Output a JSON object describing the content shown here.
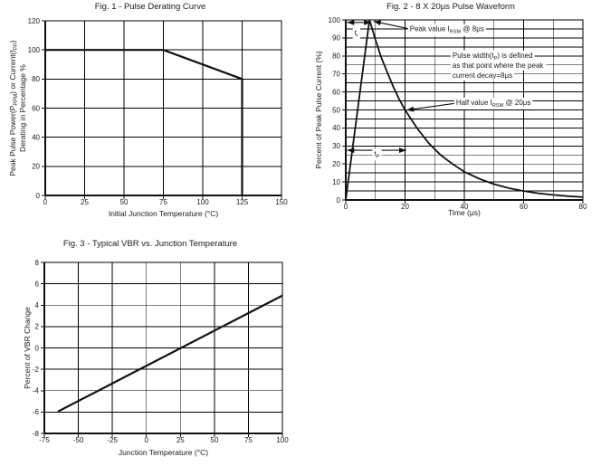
{
  "page": {
    "background": "#ffffff",
    "colors": {
      "line": "#111111",
      "grid": "#000000",
      "text": "#1a1a1a"
    }
  },
  "chart_data": [
    {
      "id": "fig1",
      "type": "line",
      "title": "Fig. 1 - Pulse Derating Curve",
      "xlabel": "Initial Junction Temperature (°C)",
      "ylabel_lines": [
        "Peak Pulse Power(P_{PPM}) or Current(I_{PP})",
        "Derating in Percentage %"
      ],
      "xlim": [
        0,
        150
      ],
      "ylim": [
        0,
        120
      ],
      "xticks": [
        0,
        25,
        50,
        75,
        100,
        125,
        150
      ],
      "yticks": [
        0,
        20,
        40,
        60,
        80,
        100,
        120
      ],
      "xgrid_step": 25,
      "ygrid_step": 20,
      "grid": true,
      "legend": null,
      "series": [
        {
          "name": "derating-line",
          "width": 2.2,
          "points": [
            [
              0,
              100
            ],
            [
              75,
              100
            ],
            [
              125,
              80
            ],
            [
              125,
              0
            ]
          ]
        }
      ],
      "annotations": []
    },
    {
      "id": "fig2",
      "type": "line",
      "title": "Fig. 2 - 8 X 20μs Pulse Waveform",
      "xlabel": "Time (μs)",
      "ylabel_lines": [
        "Percent of Peak Pulse Current (%)"
      ],
      "xlim": [
        0,
        80
      ],
      "ylim": [
        0,
        100
      ],
      "xticks": [
        0,
        20,
        40,
        60,
        80
      ],
      "yticks": [
        0,
        10,
        20,
        30,
        40,
        50,
        60,
        70,
        80,
        90,
        100
      ],
      "xgrid_step": 10,
      "ygrid_step": 5,
      "grid": true,
      "legend": null,
      "series": [
        {
          "name": "pulse-waveform",
          "width": 1.8,
          "points": [
            [
              0,
              0
            ],
            [
              8,
              100
            ],
            [
              10,
              89
            ],
            [
              12,
              79
            ],
            [
              14,
              71
            ],
            [
              16,
              63
            ],
            [
              18,
              56
            ],
            [
              20,
              50
            ],
            [
              24,
              40
            ],
            [
              28,
              31.5
            ],
            [
              32,
              25
            ],
            [
              36,
              20
            ],
            [
              40,
              15.7
            ],
            [
              45,
              11.8
            ],
            [
              50,
              8.8
            ],
            [
              55,
              6.6
            ],
            [
              60,
              5
            ],
            [
              65,
              3.7
            ],
            [
              70,
              2.8
            ],
            [
              75,
              2.1
            ],
            [
              80,
              1.6
            ]
          ]
        }
      ],
      "annotations": [
        {
          "type": "dblarrow",
          "name": "tr-span-arrow",
          "x1": 0.4,
          "y1": 98.6,
          "x2": 8.6,
          "y2": 98.6
        },
        {
          "type": "arrow",
          "name": "peak-value-arrow",
          "x1": 21.0,
          "y1": 95.2,
          "x2": 9.4,
          "y2": 99.2
        },
        {
          "type": "arrow",
          "name": "half-value-arrow",
          "x1": 36.7,
          "y1": 53.6,
          "x2": 20.5,
          "y2": 49.9
        },
        {
          "type": "dblarrow",
          "name": "tp-span-arrow",
          "x1": 0.4,
          "y1": 27.6,
          "x2": 20.4,
          "y2": 27.6
        },
        {
          "type": "text",
          "name": "tr-label",
          "text": "t_{r}",
          "x": 3.6,
          "y": 91.5,
          "anchor": "middle",
          "bg": true
        },
        {
          "type": "text",
          "name": "peak-value-label",
          "text": "Peak value I_{RSM} @ 8μs",
          "x": 21.6,
          "y": 93.6,
          "anchor": "start",
          "bg": true
        },
        {
          "type": "text",
          "name": "pulse-width-note",
          "lines": [
            "Pulse width(t_{P}) is defined",
            "as that point where the peak",
            "current decay=8μs"
          ],
          "x": 36,
          "y": 79,
          "line_h": 5.6,
          "anchor": "start",
          "bg": true
        },
        {
          "type": "text",
          "name": "half-value-label",
          "text": "Half value I_{RSM} @ 20μs",
          "x": 37.2,
          "y": 52.8,
          "anchor": "start",
          "bg": true
        },
        {
          "type": "text",
          "name": "tp-label",
          "text": "t_{P}",
          "x": 10.5,
          "y": 24.4,
          "anchor": "middle",
          "bg": true
        }
      ]
    },
    {
      "id": "fig3",
      "type": "line",
      "title": "Fig. 3 - Typical VBR vs. Junction Temperature",
      "xlabel": "Junction Temperature (°C)",
      "ylabel_lines": [
        "Percent of VBR Change"
      ],
      "xlim": [
        -75,
        100
      ],
      "ylim": [
        -8,
        8
      ],
      "xticks": [
        -75,
        -50,
        -25,
        0,
        25,
        50,
        75,
        100
      ],
      "yticks": [
        -8,
        -6,
        -4,
        -2,
        0,
        2,
        4,
        6,
        8
      ],
      "xgrid_step": 25,
      "ygrid_step": 2,
      "grid": true,
      "legend": null,
      "series": [
        {
          "name": "vbr-change-line",
          "width": 2.2,
          "points": [
            [
              -65,
              -5.95
            ],
            [
              100,
              4.9
            ]
          ]
        }
      ],
      "annotations": []
    }
  ]
}
